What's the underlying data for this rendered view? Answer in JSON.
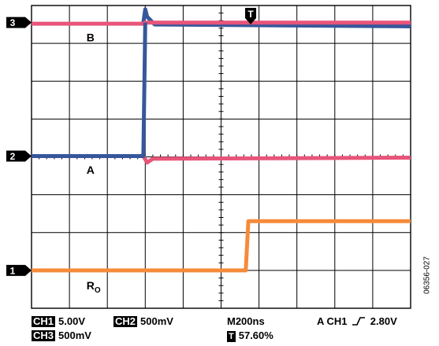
{
  "chart_data": {
    "type": "line",
    "title": "",
    "xlabel": "",
    "ylabel": "",
    "grid": true,
    "x_divisions": 10,
    "y_divisions": 8,
    "x_unit": "div",
    "y_unit": "div",
    "xlim": [
      0,
      10
    ],
    "ylim": [
      0,
      8
    ],
    "series": [
      {
        "name": "B",
        "color": "#e8557a",
        "x": [
          0,
          2.95,
          3.0,
          10
        ],
        "y": [
          7.52,
          7.52,
          7.55,
          7.55
        ]
      },
      {
        "name": "",
        "color": "#36579b",
        "x": [
          2.95,
          3.0,
          3.05,
          3.25,
          10
        ],
        "y": [
          7.55,
          7.9,
          7.7,
          7.5,
          7.45
        ]
      },
      {
        "name": "A",
        "color": "#36579b",
        "x": [
          0,
          2.95,
          3.0
        ],
        "y": [
          4.02,
          4.02,
          7.55
        ]
      },
      {
        "name": "",
        "color": "#e8557a",
        "x": [
          2.95,
          3.05,
          3.2,
          10
        ],
        "y": [
          4.02,
          3.85,
          3.95,
          3.98
        ]
      },
      {
        "name": "R_O",
        "color": "#f58b3a",
        "x": [
          0,
          5.65,
          5.72,
          10
        ],
        "y": [
          1.0,
          1.0,
          2.3,
          2.3
        ]
      }
    ],
    "channel_markers": [
      {
        "label": "3",
        "y": 7.55
      },
      {
        "label": "2",
        "y": 4.02
      },
      {
        "label": "1",
        "y": 1.0
      }
    ],
    "trigger_marker": {
      "label": "T",
      "x": 5.78
    },
    "trace_labels": [
      {
        "text": "B",
        "sub": "",
        "x": 1.45,
        "y": 7.05
      },
      {
        "text": "A",
        "sub": "",
        "x": 1.45,
        "y": 3.55
      },
      {
        "text": "R",
        "sub": "O",
        "x": 1.45,
        "y": 0.5
      }
    ]
  },
  "status": {
    "ch1_badge": "CH1",
    "ch1_value": "5.00V",
    "ch2_badge": "CH2",
    "ch2_value": "500mV",
    "timebase": "M200ns",
    "trigger_text": "A  CH1",
    "trigger_level": "2.80V",
    "ch3_badge": "CH3",
    "ch3_value": "500mV",
    "t_badge": "T",
    "t_position": "57.60%"
  },
  "figure_id": "06356-027"
}
